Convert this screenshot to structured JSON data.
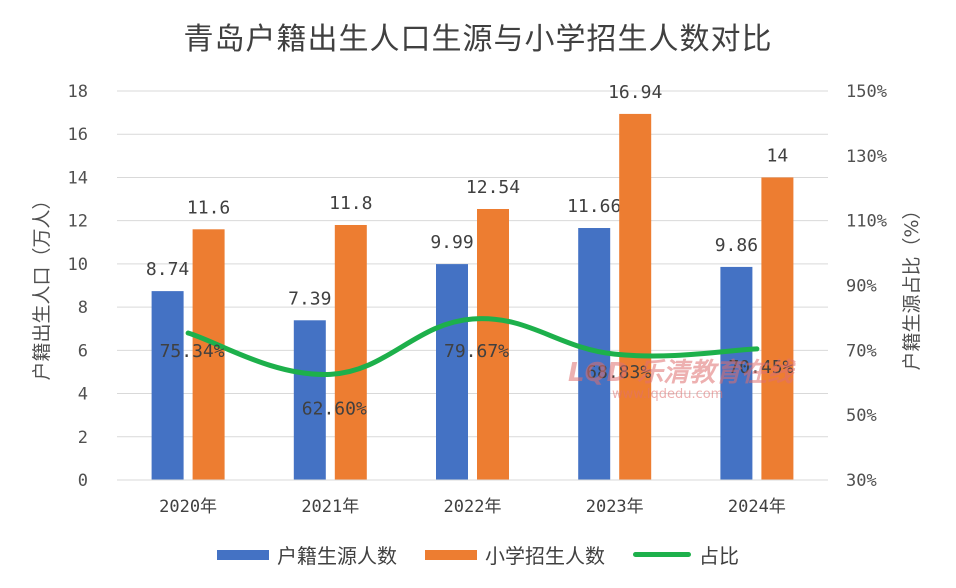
{
  "chart_data": {
    "type": "bar",
    "title": "青岛户籍出生人口生源与小学招生人数对比",
    "categories": [
      "2020年",
      "2021年",
      "2022年",
      "2023年",
      "2024年"
    ],
    "series": [
      {
        "name": "户籍生源人数",
        "type": "bar",
        "axis": "left",
        "color": "#4472C4",
        "values": [
          8.74,
          7.39,
          9.99,
          11.66,
          9.86
        ],
        "labels": [
          "8.74",
          "7.39",
          "9.99",
          "11.66",
          "9.86"
        ]
      },
      {
        "name": "小学招生人数",
        "type": "bar",
        "axis": "left",
        "color": "#ED7D31",
        "values": [
          11.6,
          11.8,
          12.54,
          16.94,
          14
        ],
        "labels": [
          "11.6",
          "11.8",
          "12.54",
          "16.94",
          "14"
        ]
      },
      {
        "name": "占比",
        "type": "line",
        "axis": "right",
        "color": "#1DB04B",
        "values": [
          75.34,
          62.6,
          79.67,
          68.83,
          70.45
        ],
        "labels": [
          "75.34%",
          "62.60%",
          "79.67%",
          "68.83%",
          "70.45%"
        ]
      }
    ],
    "ylabel": "户籍出生人口（万人）",
    "ylim": [
      0,
      18
    ],
    "yticks": [
      "0",
      "2",
      "4",
      "6",
      "8",
      "10",
      "12",
      "14",
      "16",
      "18"
    ],
    "y2label": "户籍生源占比（%）",
    "y2lim": [
      30,
      150
    ],
    "y2ticks": [
      "30%",
      "50%",
      "70%",
      "90%",
      "110%",
      "130%",
      "150%"
    ],
    "grid": true,
    "legend": "bottom"
  },
  "watermark": {
    "main": "LQD 乐清教育在线",
    "sub": "www.lqdedu.com"
  }
}
